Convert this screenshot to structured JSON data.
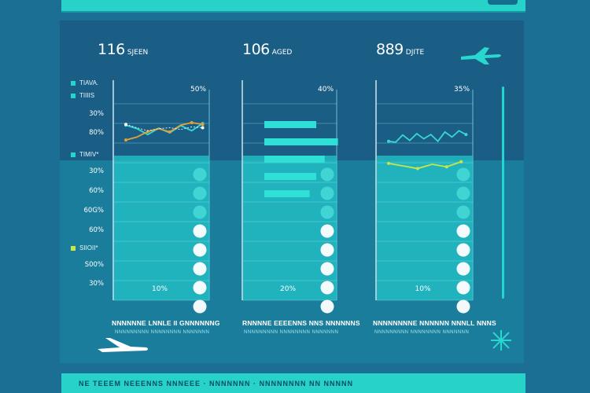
{
  "header": {
    "panel_stats": [
      {
        "value": "116",
        "unit": "SJEEN"
      },
      {
        "value": "106",
        "unit": "AGED"
      },
      {
        "value": "889",
        "unit": "DJITE"
      }
    ]
  },
  "legend": {
    "items": [
      {
        "label": "TIAVA.",
        "color": "#24d5d0"
      },
      {
        "label": "TIIIIS",
        "color": "#24d5d0"
      },
      {
        "label": "TIMIV*",
        "color": "#24d5d0"
      },
      {
        "label": "SIIOII*",
        "color": "#c6e64a"
      }
    ]
  },
  "y_axis": {
    "ticks": [
      "30%",
      "80%",
      "30%",
      "60%",
      "60G%",
      "60%",
      "S00%",
      "30%"
    ]
  },
  "chart_data": [
    {
      "type": "line",
      "title": "",
      "top_label": "50%",
      "bottom_label": "10%",
      "xlabel": "NNNNNNE LNNLE II GNNNNNNG",
      "xsublabel": "NNNNNNNNN NNNNNNNN NNNNNNN",
      "series": [
        {
          "color": "#37d7d3",
          "values": [
            68,
            60,
            46,
            61,
            50,
            67,
            55,
            72
          ]
        },
        {
          "color": "#e0a23a",
          "values": [
            33,
            40,
            53,
            60,
            52,
            68,
            74,
            70
          ]
        },
        {
          "color": "#ffffff",
          "values": [
            70,
            62,
            55,
            60,
            62,
            58,
            64,
            62
          ]
        }
      ],
      "columns_level": [
        100,
        88,
        75,
        60,
        48,
        35,
        22,
        10
      ],
      "ylim": [
        0,
        100
      ]
    },
    {
      "type": "bar",
      "title": "",
      "top_label": "40%",
      "bottom_label": "20%",
      "xlabel": "RNNNNE EEEENNS NNS NNNNNNS",
      "xsublabel": "NNNNNNNNN NNNNNNNN NNNNNNN",
      "values": [
        55,
        78,
        64,
        55,
        48
      ],
      "columns_level": [
        100,
        88,
        75,
        60,
        48,
        35,
        22,
        10
      ],
      "ylim": [
        0,
        100
      ]
    },
    {
      "type": "line",
      "title": "",
      "top_label": "35%",
      "bottom_label": "10%",
      "xlabel": "NNNNNNNNE NNNNNN NNNLL NNNS",
      "xsublabel": "NNNNNNNNN NNNNNNNN NNNNNNN",
      "series": [
        {
          "color": "#37d7d3",
          "values": [
            30,
            28,
            45,
            32,
            48,
            36,
            46,
            30,
            52,
            40,
            55,
            46
          ]
        },
        {
          "color": "#c6e64a",
          "values": [
            52,
            46,
            40,
            50,
            44,
            56
          ]
        }
      ],
      "columns_level": [
        100,
        88,
        75,
        60,
        48,
        35,
        22,
        10
      ],
      "ylim": [
        0,
        100
      ]
    }
  ],
  "footer": {
    "text": "NE TEEEM NEEENNS NNNEEE  ·  NNNNNNN  ·  NNNNNNNN NN NNNNN"
  }
}
